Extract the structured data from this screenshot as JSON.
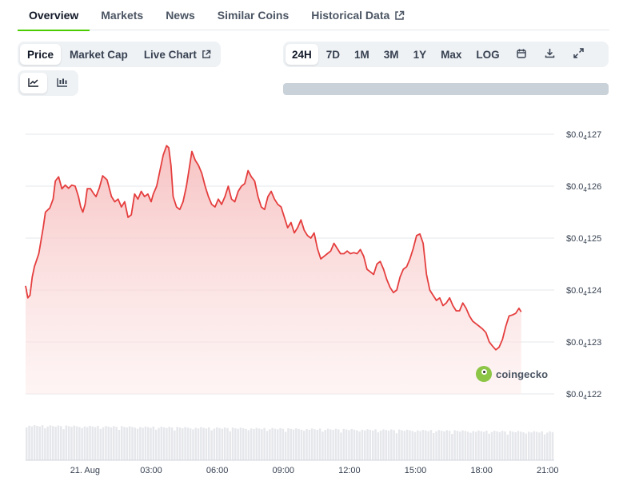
{
  "nav": {
    "tabs": [
      {
        "label": "Overview",
        "active": true
      },
      {
        "label": "Markets"
      },
      {
        "label": "News"
      },
      {
        "label": "Similar Coins"
      },
      {
        "label": "Historical Data",
        "external": true
      }
    ]
  },
  "chart_controls": {
    "metric_options": [
      "Price",
      "Market Cap",
      "Live Chart"
    ],
    "selected_metric": "Price",
    "chart_types": [
      "line-chart-icon",
      "candlestick-chart-icon"
    ],
    "selected_chart_type": "line-chart-icon",
    "ranges": [
      "24H",
      "7D",
      "1M",
      "3M",
      "1Y",
      "Max",
      "LOG"
    ],
    "selected_range": "24H",
    "tool_icons": [
      "calendar-icon",
      "download-icon",
      "expand-icon"
    ]
  },
  "watermark": {
    "text": "coingecko"
  },
  "colors": {
    "line": "#e53e3e",
    "fill_top": "#f8c9c9",
    "accent_tab": "#4bcc00",
    "volume": "#e5e7eb"
  },
  "chart_data": {
    "type": "area",
    "title": "",
    "xlabel": "",
    "ylabel": "",
    "x_tick_labels": [
      "21. Aug",
      "03:00",
      "06:00",
      "09:00",
      "12:00",
      "15:00",
      "18:00",
      "21:00"
    ],
    "y_tick_labels": [
      {
        "prefix": "$0.0",
        "sub": "4",
        "suffix": "127"
      },
      {
        "prefix": "$0.0",
        "sub": "4",
        "suffix": "126"
      },
      {
        "prefix": "$0.0",
        "sub": "4",
        "suffix": "125"
      },
      {
        "prefix": "$0.0",
        "sub": "4",
        "suffix": "124"
      },
      {
        "prefix": "$0.0",
        "sub": "4",
        "suffix": "123"
      },
      {
        "prefix": "$0.0",
        "sub": "4",
        "suffix": "122"
      }
    ],
    "y_values_of_ticks": [
      1.27,
      1.26,
      1.25,
      1.24,
      1.23,
      1.22
    ],
    "ylim": [
      1.22,
      1.27
    ],
    "y_unit_note": "y values in units of 1e-5 USD",
    "x_unit": "hours since midnight 21 Aug",
    "xlim": [
      -2.7,
      21.3
    ],
    "x_ticks": [
      0,
      3,
      6,
      9,
      12,
      15,
      18,
      21
    ],
    "series": [
      {
        "values": [
          [
            -2.7,
            1.2408
          ],
          [
            -2.6,
            1.2385
          ],
          [
            -2.5,
            1.239
          ],
          [
            -2.4,
            1.2425
          ],
          [
            -2.3,
            1.2445
          ],
          [
            -2.1,
            1.247
          ],
          [
            -1.9,
            1.252
          ],
          [
            -1.8,
            1.255
          ],
          [
            -1.6,
            1.2558
          ],
          [
            -1.45,
            1.2575
          ],
          [
            -1.35,
            1.261
          ],
          [
            -1.2,
            1.2618
          ],
          [
            -1.05,
            1.2595
          ],
          [
            -0.9,
            1.2602
          ],
          [
            -0.75,
            1.2596
          ],
          [
            -0.6,
            1.2602
          ],
          [
            -0.45,
            1.26
          ],
          [
            -0.3,
            1.258
          ],
          [
            -0.2,
            1.256
          ],
          [
            -0.1,
            1.255
          ],
          [
            0.0,
            1.2565
          ],
          [
            0.1,
            1.2595
          ],
          [
            0.25,
            1.2595
          ],
          [
            0.4,
            1.2585
          ],
          [
            0.5,
            1.258
          ],
          [
            0.65,
            1.2597
          ],
          [
            0.8,
            1.262
          ],
          [
            1.0,
            1.2612
          ],
          [
            1.2,
            1.258
          ],
          [
            1.35,
            1.257
          ],
          [
            1.5,
            1.2575
          ],
          [
            1.65,
            1.256
          ],
          [
            1.8,
            1.257
          ],
          [
            1.95,
            1.254
          ],
          [
            2.1,
            1.2545
          ],
          [
            2.25,
            1.2585
          ],
          [
            2.4,
            1.2575
          ],
          [
            2.55,
            1.259
          ],
          [
            2.7,
            1.258
          ],
          [
            2.85,
            1.2585
          ],
          [
            3.0,
            1.257
          ],
          [
            3.1,
            1.2585
          ],
          [
            3.25,
            1.26
          ],
          [
            3.4,
            1.263
          ],
          [
            3.55,
            1.266
          ],
          [
            3.7,
            1.2678
          ],
          [
            3.8,
            1.2674
          ],
          [
            3.9,
            1.264
          ],
          [
            4.0,
            1.258
          ],
          [
            4.15,
            1.256
          ],
          [
            4.3,
            1.2555
          ],
          [
            4.45,
            1.257
          ],
          [
            4.6,
            1.26
          ],
          [
            4.75,
            1.264
          ],
          [
            4.85,
            1.2667
          ],
          [
            5.0,
            1.265
          ],
          [
            5.15,
            1.264
          ],
          [
            5.3,
            1.2625
          ],
          [
            5.45,
            1.26
          ],
          [
            5.6,
            1.258
          ],
          [
            5.75,
            1.2565
          ],
          [
            5.9,
            1.256
          ],
          [
            6.05,
            1.2575
          ],
          [
            6.2,
            1.2565
          ],
          [
            6.35,
            1.258
          ],
          [
            6.5,
            1.26
          ],
          [
            6.65,
            1.2575
          ],
          [
            6.8,
            1.257
          ],
          [
            6.95,
            1.259
          ],
          [
            7.1,
            1.26
          ],
          [
            7.25,
            1.2605
          ],
          [
            7.4,
            1.263
          ],
          [
            7.55,
            1.2618
          ],
          [
            7.7,
            1.261
          ],
          [
            7.85,
            1.258
          ],
          [
            8.0,
            1.256
          ],
          [
            8.15,
            1.2555
          ],
          [
            8.3,
            1.258
          ],
          [
            8.45,
            1.259
          ],
          [
            8.6,
            1.2575
          ],
          [
            8.75,
            1.2565
          ],
          [
            8.9,
            1.256
          ],
          [
            9.05,
            1.254
          ],
          [
            9.2,
            1.252
          ],
          [
            9.35,
            1.253
          ],
          [
            9.5,
            1.251
          ],
          [
            9.65,
            1.252
          ],
          [
            9.8,
            1.2535
          ],
          [
            9.95,
            1.2515
          ],
          [
            10.1,
            1.2505
          ],
          [
            10.25,
            1.25
          ],
          [
            10.4,
            1.251
          ],
          [
            10.55,
            1.248
          ],
          [
            10.7,
            1.246
          ],
          [
            10.85,
            1.2465
          ],
          [
            11.0,
            1.247
          ],
          [
            11.15,
            1.2475
          ],
          [
            11.3,
            1.249
          ],
          [
            11.45,
            1.248
          ],
          [
            11.6,
            1.247
          ],
          [
            11.75,
            1.247
          ],
          [
            11.9,
            1.2475
          ],
          [
            12.05,
            1.247
          ],
          [
            12.2,
            1.2472
          ],
          [
            12.35,
            1.247
          ],
          [
            12.5,
            1.2478
          ],
          [
            12.65,
            1.2465
          ],
          [
            12.8,
            1.244
          ],
          [
            12.95,
            1.2435
          ],
          [
            13.1,
            1.243
          ],
          [
            13.25,
            1.245
          ],
          [
            13.4,
            1.2455
          ],
          [
            13.55,
            1.244
          ],
          [
            13.7,
            1.242
          ],
          [
            13.85,
            1.2405
          ],
          [
            14.0,
            1.2395
          ],
          [
            14.15,
            1.24
          ],
          [
            14.3,
            1.2425
          ],
          [
            14.45,
            1.244
          ],
          [
            14.6,
            1.2445
          ],
          [
            14.75,
            1.246
          ],
          [
            14.9,
            1.248
          ],
          [
            15.05,
            1.2505
          ],
          [
            15.2,
            1.2508
          ],
          [
            15.35,
            1.249
          ],
          [
            15.5,
            1.243
          ],
          [
            15.65,
            1.24
          ],
          [
            15.8,
            1.239
          ],
          [
            15.95,
            1.238
          ],
          [
            16.1,
            1.2385
          ],
          [
            16.25,
            1.237
          ],
          [
            16.4,
            1.2375
          ],
          [
            16.55,
            1.2385
          ],
          [
            16.7,
            1.237
          ],
          [
            16.85,
            1.236
          ],
          [
            17.0,
            1.236
          ],
          [
            17.15,
            1.2375
          ],
          [
            17.3,
            1.2365
          ],
          [
            17.45,
            1.235
          ],
          [
            17.6,
            1.234
          ],
          [
            17.75,
            1.2335
          ],
          [
            17.9,
            1.233
          ],
          [
            18.05,
            1.2325
          ],
          [
            18.2,
            1.2318
          ],
          [
            18.35,
            1.23
          ],
          [
            18.5,
            1.2292
          ],
          [
            18.65,
            1.2285
          ],
          [
            18.8,
            1.229
          ],
          [
            18.95,
            1.2305
          ],
          [
            19.1,
            1.233
          ],
          [
            19.25,
            1.235
          ],
          [
            19.4,
            1.2352
          ],
          [
            19.55,
            1.2355
          ],
          [
            19.7,
            1.2365
          ],
          [
            19.8,
            1.2358
          ]
        ]
      }
    ],
    "volume_note": "volume bars along the bottom, unlabeled",
    "grid": true
  }
}
